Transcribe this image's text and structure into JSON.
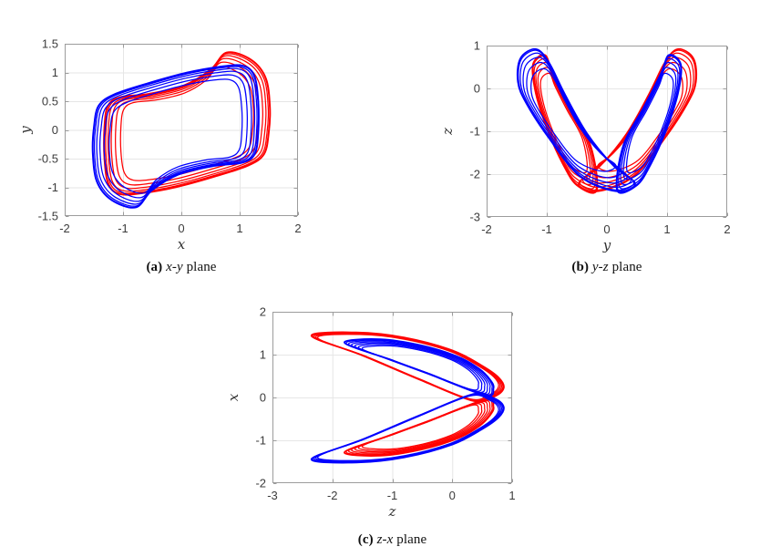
{
  "page": {
    "background": "#ffffff"
  },
  "style": {
    "red": "#FF0000",
    "blue": "#0000FF",
    "grid_color": "#E6E6E6",
    "axis_color": "#9C9C9C",
    "tick_label_color": "#3C3C3C"
  },
  "chart_data": [
    {
      "id": "a",
      "type": "line",
      "caption": {
        "label": "(a)",
        "pair": "x-y",
        "suffix": "plane"
      },
      "xlabel": "x",
      "ylabel": "y",
      "xlim": [
        -2,
        2
      ],
      "ylim": [
        -1.5,
        1.5
      ],
      "xticks": [
        -2,
        -1,
        0,
        1,
        2
      ],
      "yticks": [
        -1.5,
        -1,
        -0.5,
        0,
        0.5,
        1,
        1.5
      ],
      "grid": true,
      "legend": false,
      "series": [
        {
          "name": "attractor-red",
          "color": "#FF0000",
          "strands": 7,
          "shrink": 0.8,
          "cluster": 2.0,
          "center": [
            0.1,
            0.1
          ],
          "ring": [
            [
              0.78,
              1.35
            ],
            [
              1.2,
              1.22
            ],
            [
              1.45,
              0.9
            ],
            [
              1.52,
              0.4
            ],
            [
              1.5,
              -0.05
            ],
            [
              1.42,
              -0.42
            ],
            [
              1.15,
              -0.62
            ],
            [
              0.55,
              -0.82
            ],
            [
              -0.1,
              -1.0
            ],
            [
              -0.65,
              -1.1
            ],
            [
              -1.05,
              -1.12
            ],
            [
              -1.25,
              -0.95
            ],
            [
              -1.32,
              -0.5
            ],
            [
              -1.32,
              0.05
            ],
            [
              -1.26,
              0.42
            ],
            [
              -1.05,
              0.57
            ],
            [
              -0.55,
              0.63
            ],
            [
              0.05,
              0.78
            ],
            [
              0.5,
              1.05
            ]
          ]
        },
        {
          "name": "attractor-blue",
          "color": "#0000FF",
          "strands": 7,
          "shrink": 0.8,
          "cluster": 2.0,
          "center": [
            -0.1,
            -0.1
          ],
          "ring": [
            [
              -0.78,
              -1.35
            ],
            [
              -1.2,
              -1.22
            ],
            [
              -1.45,
              -0.9
            ],
            [
              -1.52,
              -0.4
            ],
            [
              -1.5,
              0.05
            ],
            [
              -1.42,
              0.42
            ],
            [
              -1.15,
              0.62
            ],
            [
              -0.55,
              0.82
            ],
            [
              0.1,
              1.0
            ],
            [
              0.65,
              1.1
            ],
            [
              1.05,
              1.12
            ],
            [
              1.25,
              0.95
            ],
            [
              1.32,
              0.5
            ],
            [
              1.32,
              -0.05
            ],
            [
              1.26,
              -0.42
            ],
            [
              1.05,
              -0.57
            ],
            [
              0.55,
              -0.63
            ],
            [
              -0.05,
              -0.78
            ],
            [
              -0.5,
              -1.05
            ]
          ]
        }
      ]
    },
    {
      "id": "b",
      "type": "line",
      "caption": {
        "label": "(b)",
        "pair": "y-z",
        "suffix": "plane"
      },
      "xlabel": "y",
      "ylabel": "z",
      "xlim": [
        -2,
        2
      ],
      "ylim": [
        -3,
        1
      ],
      "xticks": [
        -2,
        -1,
        0,
        1,
        2
      ],
      "yticks": [
        -3,
        -2,
        -1,
        0,
        1
      ],
      "grid": true,
      "legend": false,
      "series": [
        {
          "name": "attractor-red-left-lobe",
          "color": "#FF0000",
          "strands": 6,
          "shrink": 0.72,
          "cluster": 1.7,
          "center": [
            -0.76,
            -0.76
          ],
          "ring": [
            [
              -0.17,
              -2.38
            ],
            [
              -0.27,
              -1.34
            ],
            [
              -0.62,
              -0.42
            ],
            [
              -0.9,
              0.36
            ],
            [
              -1.03,
              0.78
            ],
            [
              -1.23,
              0.56
            ],
            [
              -1.18,
              -0.13
            ],
            [
              -0.98,
              -1.0
            ],
            [
              -0.73,
              -1.77
            ],
            [
              -0.5,
              -2.26
            ]
          ]
        },
        {
          "name": "attractor-red-right-lobe",
          "color": "#FF0000",
          "strands": 6,
          "shrink": 0.72,
          "cluster": 1.7,
          "center": [
            0.68,
            -0.73
          ],
          "ring": [
            [
              -0.15,
              -2.4
            ],
            [
              0.45,
              -2.05
            ],
            [
              0.97,
              -1.15
            ],
            [
              1.34,
              -0.35
            ],
            [
              1.48,
              0.15
            ],
            [
              1.44,
              0.7
            ],
            [
              1.18,
              0.92
            ],
            [
              0.96,
              0.6
            ],
            [
              0.7,
              -0.13
            ],
            [
              0.33,
              -1.05
            ],
            [
              -0.12,
              -1.82
            ],
            [
              -0.47,
              -2.22
            ]
          ]
        },
        {
          "name": "attractor-blue-left-lobe",
          "color": "#0000FF",
          "strands": 6,
          "shrink": 0.72,
          "cluster": 1.7,
          "center": [
            -0.68,
            -0.73
          ],
          "ring": [
            [
              0.15,
              -2.4
            ],
            [
              -0.45,
              -2.05
            ],
            [
              -0.97,
              -1.15
            ],
            [
              -1.34,
              -0.35
            ],
            [
              -1.48,
              0.15
            ],
            [
              -1.44,
              0.7
            ],
            [
              -1.18,
              0.92
            ],
            [
              -0.96,
              0.6
            ],
            [
              -0.7,
              -0.13
            ],
            [
              -0.33,
              -1.05
            ],
            [
              0.12,
              -1.82
            ],
            [
              0.47,
              -2.22
            ]
          ]
        },
        {
          "name": "attractor-blue-right-lobe",
          "color": "#0000FF",
          "strands": 6,
          "shrink": 0.72,
          "cluster": 1.7,
          "center": [
            0.76,
            -0.76
          ],
          "ring": [
            [
              0.17,
              -2.38
            ],
            [
              0.27,
              -1.34
            ],
            [
              0.62,
              -0.42
            ],
            [
              0.9,
              0.36
            ],
            [
              1.03,
              0.78
            ],
            [
              1.23,
              0.56
            ],
            [
              1.18,
              -0.13
            ],
            [
              0.98,
              -1.0
            ],
            [
              0.73,
              -1.77
            ],
            [
              0.5,
              -2.26
            ]
          ]
        }
      ]
    },
    {
      "id": "c",
      "type": "line",
      "caption": {
        "label": "(c)",
        "pair": "z-x",
        "suffix": "plane"
      },
      "xlabel": "z",
      "ylabel": "x",
      "xlim": [
        -3,
        1
      ],
      "ylim": [
        -2,
        2
      ],
      "xticks": [
        -3,
        -2,
        -1,
        0,
        1
      ],
      "yticks": [
        -2,
        -1,
        0,
        1,
        2
      ],
      "grid": true,
      "legend": false,
      "series": [
        {
          "name": "attractor-red-upper-crescent",
          "color": "#FF0000",
          "strands": 5,
          "shrink": 0.94,
          "cluster": 1.2,
          "center": [
            -0.6,
            0.7
          ],
          "ring": [
            [
              -2.35,
              1.44
            ],
            [
              -1.6,
              1.52
            ],
            [
              -0.8,
              1.4
            ],
            [
              0.0,
              1.1
            ],
            [
              0.5,
              0.74
            ],
            [
              0.78,
              0.46
            ],
            [
              0.86,
              0.22
            ],
            [
              0.7,
              0.02
            ],
            [
              0.35,
              -0.08
            ],
            [
              -0.55,
              0.42
            ],
            [
              -1.5,
              0.98
            ]
          ]
        },
        {
          "name": "attractor-red-lower-inner",
          "color": "#FF0000",
          "strands": 7,
          "shrink": 0.78,
          "cluster": 1.3,
          "center": [
            -0.45,
            -0.65
          ],
          "ring": [
            [
              -1.8,
              -1.28
            ],
            [
              -1.2,
              -1.36
            ],
            [
              -0.5,
              -1.21
            ],
            [
              0.1,
              -0.95
            ],
            [
              0.45,
              -0.67
            ],
            [
              0.63,
              -0.42
            ],
            [
              0.69,
              -0.22
            ],
            [
              0.55,
              -0.05
            ],
            [
              -0.4,
              -0.55
            ],
            [
              -1.1,
              -0.91
            ]
          ]
        },
        {
          "name": "attractor-blue-upper-inner",
          "color": "#0000FF",
          "strands": 7,
          "shrink": 0.78,
          "cluster": 1.3,
          "center": [
            -0.45,
            0.65
          ],
          "ring": [
            [
              -1.8,
              1.28
            ],
            [
              -1.2,
              1.36
            ],
            [
              -0.5,
              1.21
            ],
            [
              0.1,
              0.95
            ],
            [
              0.45,
              0.67
            ],
            [
              0.63,
              0.42
            ],
            [
              0.69,
              0.22
            ],
            [
              0.55,
              0.05
            ],
            [
              -0.4,
              0.55
            ],
            [
              -1.1,
              0.91
            ]
          ]
        },
        {
          "name": "attractor-blue-lower-crescent",
          "color": "#0000FF",
          "strands": 5,
          "shrink": 0.94,
          "cluster": 1.2,
          "center": [
            -0.6,
            -0.7
          ],
          "ring": [
            [
              -2.35,
              -1.44
            ],
            [
              -1.6,
              -1.52
            ],
            [
              -0.8,
              -1.4
            ],
            [
              0.0,
              -1.1
            ],
            [
              0.5,
              -0.74
            ],
            [
              0.78,
              -0.46
            ],
            [
              0.86,
              -0.22
            ],
            [
              0.7,
              -0.02
            ],
            [
              0.35,
              0.08
            ],
            [
              -0.55,
              -0.42
            ],
            [
              -1.5,
              -0.98
            ]
          ]
        }
      ]
    }
  ]
}
